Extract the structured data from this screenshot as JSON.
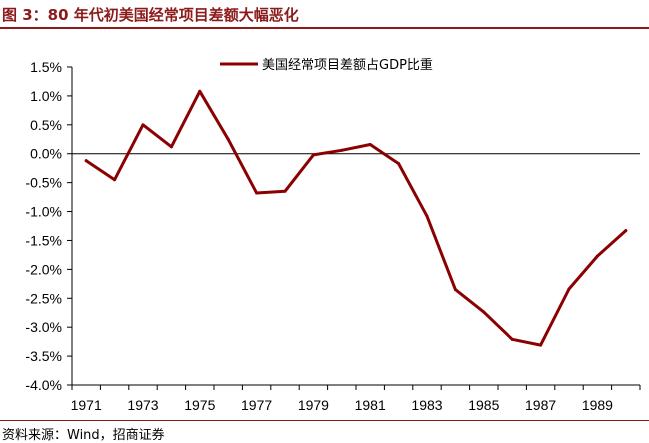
{
  "figure_title": "图 3：80 年代初美国经常项目差额大幅恶化",
  "source_note": "资料来源：Wind，招商证券",
  "colors": {
    "series": "#8b0000",
    "accent": "#8b1a1a",
    "zero_line": "#000000"
  },
  "chart_data": {
    "type": "line",
    "title": "",
    "xlabel": "",
    "ylabel": "",
    "legend_position": "top-right",
    "grid": false,
    "x": [
      1971,
      1972,
      1973,
      1974,
      1975,
      1976,
      1977,
      1978,
      1979,
      1980,
      1981,
      1982,
      1983,
      1984,
      1985,
      1986,
      1987,
      1988,
      1989,
      1990
    ],
    "series": [
      {
        "name": "美国经常项目差额占GDP比重",
        "values": [
          -0.12,
          -0.45,
          0.5,
          0.12,
          1.08,
          0.25,
          -0.68,
          -0.65,
          -0.02,
          0.06,
          0.16,
          -0.17,
          -1.08,
          -2.35,
          -2.74,
          -3.21,
          -3.31,
          -2.34,
          -1.77,
          -1.33
        ]
      }
    ],
    "xticks": [
      "1971",
      "1973",
      "1975",
      "1977",
      "1979",
      "1981",
      "1983",
      "1985",
      "1987",
      "1989"
    ],
    "yticks": [
      "1.5%",
      "1.0%",
      "0.5%",
      "0.0%",
      "-0.5%",
      "-1.0%",
      "-1.5%",
      "-2.0%",
      "-2.5%",
      "-3.0%",
      "-3.5%",
      "-4.0%"
    ],
    "ylim": [
      -4.0,
      1.5
    ],
    "xlim": [
      1970.5,
      1990.5
    ]
  }
}
